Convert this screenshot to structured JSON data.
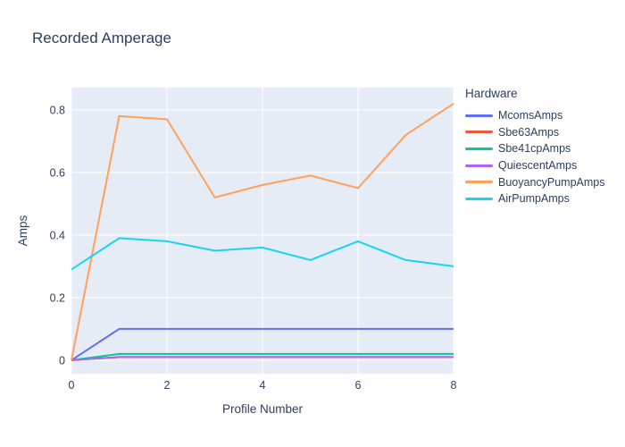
{
  "chart_data": {
    "type": "line",
    "title": "Recorded Amperage",
    "xlabel": "Profile Number",
    "ylabel": "Amps",
    "legend_title": "Hardware",
    "legend_position": "right",
    "grid": true,
    "x": [
      0,
      1,
      2,
      3,
      4,
      5,
      6,
      7,
      8
    ],
    "xticks": [
      0,
      2,
      4,
      6,
      8
    ],
    "yticks": [
      0,
      0.2,
      0.4,
      0.6,
      0.8
    ],
    "xlim": [
      0,
      8
    ],
    "ylim": [
      -0.043,
      0.871
    ],
    "plot_bg_color": "#e5ecf6",
    "grid_color": "#ffffff",
    "text_color": "#2a3f5f",
    "series": [
      {
        "name": "McomsAmps",
        "color": "#636efa",
        "values": [
          0,
          0.1,
          0.1,
          0.1,
          0.1,
          0.1,
          0.1,
          0.1,
          0.1
        ]
      },
      {
        "name": "Sbe63Amps",
        "color": "#ef553b",
        "values": [
          0,
          0.01,
          0.01,
          0.01,
          0.01,
          0.01,
          0.01,
          0.01,
          0.01
        ]
      },
      {
        "name": "Sbe41cpAmps",
        "color": "#00cc96",
        "values": [
          0,
          0.02,
          0.02,
          0.02,
          0.02,
          0.02,
          0.02,
          0.02,
          0.02
        ]
      },
      {
        "name": "QuiescentAmps",
        "color": "#ab63fa",
        "values": [
          0,
          0.01,
          0.01,
          0.01,
          0.01,
          0.01,
          0.01,
          0.01,
          0.01
        ]
      },
      {
        "name": "BuoyancyPumpAmps",
        "color": "#ffa15a",
        "values": [
          0,
          0.78,
          0.77,
          0.52,
          0.56,
          0.59,
          0.55,
          0.72,
          0.82
        ]
      },
      {
        "name": "AirPumpAmps",
        "color": "#19d3f3",
        "values": [
          0.29,
          0.39,
          0.38,
          0.35,
          0.36,
          0.32,
          0.38,
          0.32,
          0.3
        ]
      }
    ]
  }
}
